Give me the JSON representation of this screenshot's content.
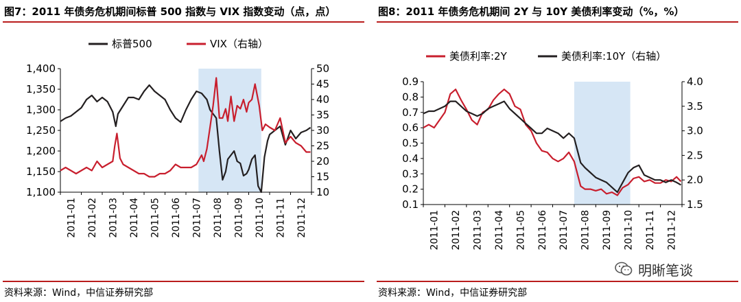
{
  "figures": [
    {
      "title": "图7：2011 年债务危机期间标普 500 指数与 VIX 指数变动（点，点）",
      "source": "资料来源：Wind，中信证券研究部"
    },
    {
      "title": "图8：2011 年债务危机期间 2Y 与 10Y 美债利率变动（%，%）",
      "source": "资料来源：Wind，中信证券研究部"
    }
  ],
  "watermark": {
    "text": "明晰笔谈"
  },
  "chart_data": [
    {
      "type": "line",
      "x_labels": [
        "2011-01",
        "2011-02",
        "2011-03",
        "2011-04",
        "2011-05",
        "2011-06",
        "2011-07",
        "2011-08",
        "2011-09",
        "2011-10",
        "2011-11",
        "2011-12"
      ],
      "x_range": [
        0,
        12
      ],
      "shaded_region": [
        6.6,
        9.6
      ],
      "legend_position": "top",
      "y_left": {
        "min": 1100,
        "max": 1400,
        "ticks": [
          "1,100",
          "1,150",
          "1,200",
          "1,250",
          "1,300",
          "1,350",
          "1,400"
        ]
      },
      "y_right": {
        "min": 10,
        "max": 50,
        "ticks": [
          "10",
          "15",
          "20",
          "25",
          "30",
          "35",
          "40",
          "45",
          "50"
        ]
      },
      "series": [
        {
          "name": "标普500",
          "axis": "left",
          "color": "#231f20",
          "x": [
            0,
            0.25,
            0.5,
            0.75,
            1,
            1.25,
            1.5,
            1.75,
            2,
            2.25,
            2.5,
            2.65,
            2.75,
            3,
            3.25,
            3.5,
            3.75,
            4,
            4.25,
            4.5,
            4.75,
            5,
            5.25,
            5.5,
            5.75,
            6,
            6.25,
            6.5,
            6.75,
            7,
            7.15,
            7.3,
            7.45,
            7.6,
            7.75,
            7.9,
            8,
            8.15,
            8.3,
            8.45,
            8.6,
            8.75,
            8.9,
            9,
            9.15,
            9.3,
            9.45,
            9.6,
            9.75,
            9.9,
            10,
            10.25,
            10.5,
            10.75,
            11,
            11.25,
            11.5,
            11.75,
            11.95
          ],
          "values": [
            1272,
            1280,
            1285,
            1295,
            1305,
            1325,
            1335,
            1320,
            1330,
            1320,
            1295,
            1260,
            1290,
            1310,
            1330,
            1330,
            1325,
            1345,
            1360,
            1345,
            1335,
            1325,
            1300,
            1280,
            1270,
            1300,
            1325,
            1345,
            1340,
            1325,
            1300,
            1290,
            1280,
            1200,
            1130,
            1150,
            1180,
            1190,
            1200,
            1175,
            1170,
            1140,
            1145,
            1155,
            1180,
            1190,
            1115,
            1100,
            1185,
            1225,
            1240,
            1250,
            1260,
            1215,
            1250,
            1230,
            1245,
            1250,
            1257
          ]
        },
        {
          "name": "VIX（右轴）",
          "axis": "right",
          "color": "#c81e2d",
          "x": [
            0,
            0.25,
            0.5,
            0.75,
            1,
            1.25,
            1.5,
            1.75,
            2,
            2.25,
            2.5,
            2.6,
            2.7,
            2.85,
            3,
            3.25,
            3.5,
            3.75,
            4,
            4.25,
            4.5,
            4.75,
            5,
            5.25,
            5.5,
            5.75,
            6,
            6.25,
            6.5,
            6.75,
            6.85,
            7,
            7.15,
            7.3,
            7.45,
            7.6,
            7.75,
            7.9,
            8,
            8.15,
            8.3,
            8.45,
            8.6,
            8.75,
            8.9,
            9,
            9.15,
            9.3,
            9.5,
            9.65,
            9.8,
            10,
            10.25,
            10.5,
            10.75,
            11,
            11.25,
            11.5,
            11.75,
            11.95
          ],
          "values": [
            17,
            18,
            17,
            16,
            17,
            18,
            17,
            20,
            18,
            19,
            20,
            25,
            29,
            21,
            19,
            18,
            17,
            16,
            16,
            15,
            15,
            16,
            16,
            17,
            19,
            18,
            18,
            18,
            19,
            22,
            20,
            24,
            31,
            38,
            47,
            34,
            34,
            37,
            33,
            41,
            33,
            38,
            37,
            40,
            36,
            39,
            40,
            45,
            38,
            30,
            32,
            31,
            30,
            34,
            26,
            28,
            26,
            25,
            23,
            23
          ]
        }
      ]
    },
    {
      "type": "line",
      "x_labels": [
        "2011-01",
        "2011-02",
        "2011-03",
        "2011-04",
        "2011-05",
        "2011-06",
        "2011-07",
        "2011-08",
        "2011-09",
        "2011-10",
        "2011-11",
        "2011-12"
      ],
      "x_range": [
        0,
        12
      ],
      "shaded_region": [
        7.0,
        9.6
      ],
      "legend_position": "top",
      "y_left": {
        "min": 0.1,
        "max": 0.9,
        "ticks": [
          "0.1",
          "0.2",
          "0.3",
          "0.4",
          "0.5",
          "0.6",
          "0.7",
          "0.8",
          "0.9"
        ]
      },
      "y_right": {
        "min": 1.5,
        "max": 4.0,
        "ticks": [
          "1.5",
          "2.0",
          "2.5",
          "3.0",
          "3.5",
          "4.0"
        ]
      },
      "series": [
        {
          "name": "美债利率:2Y",
          "axis": "left",
          "color": "#c81e2d",
          "x": [
            0,
            0.25,
            0.5,
            0.75,
            1,
            1.25,
            1.5,
            1.75,
            2,
            2.25,
            2.5,
            2.75,
            3,
            3.25,
            3.5,
            3.75,
            4,
            4.25,
            4.5,
            4.75,
            5,
            5.25,
            5.5,
            5.75,
            6,
            6.25,
            6.5,
            6.75,
            7,
            7.15,
            7.3,
            7.5,
            7.75,
            8,
            8.25,
            8.5,
            8.75,
            9,
            9.25,
            9.5,
            9.75,
            10,
            10.25,
            10.5,
            10.75,
            11,
            11.25,
            11.5,
            11.75,
            11.95
          ],
          "values": [
            0.6,
            0.62,
            0.6,
            0.65,
            0.7,
            0.82,
            0.85,
            0.78,
            0.72,
            0.65,
            0.62,
            0.7,
            0.72,
            0.78,
            0.82,
            0.85,
            0.82,
            0.74,
            0.72,
            0.62,
            0.58,
            0.5,
            0.45,
            0.44,
            0.4,
            0.38,
            0.4,
            0.44,
            0.38,
            0.3,
            0.22,
            0.2,
            0.2,
            0.19,
            0.2,
            0.17,
            0.18,
            0.16,
            0.21,
            0.23,
            0.27,
            0.28,
            0.25,
            0.26,
            0.24,
            0.24,
            0.26,
            0.25,
            0.28,
            0.25
          ]
        },
        {
          "name": "美债利率:10Y（右轴）",
          "axis": "right",
          "color": "#231f20",
          "x": [
            0,
            0.25,
            0.5,
            0.75,
            1,
            1.25,
            1.5,
            1.75,
            2,
            2.25,
            2.5,
            2.75,
            3,
            3.25,
            3.5,
            3.75,
            4,
            4.25,
            4.5,
            4.75,
            5,
            5.25,
            5.5,
            5.75,
            6,
            6.25,
            6.5,
            6.75,
            7,
            7.15,
            7.3,
            7.5,
            7.75,
            8,
            8.25,
            8.5,
            8.75,
            9,
            9.25,
            9.5,
            9.75,
            10,
            10.25,
            10.5,
            10.75,
            11,
            11.25,
            11.5,
            11.75,
            11.95
          ],
          "values": [
            3.35,
            3.4,
            3.4,
            3.45,
            3.5,
            3.6,
            3.6,
            3.5,
            3.4,
            3.35,
            3.3,
            3.35,
            3.45,
            3.5,
            3.55,
            3.6,
            3.45,
            3.35,
            3.25,
            3.15,
            3.05,
            2.95,
            2.95,
            3.05,
            3.0,
            2.95,
            2.85,
            2.95,
            2.85,
            2.6,
            2.35,
            2.25,
            2.15,
            2.05,
            2.0,
            1.95,
            1.85,
            1.75,
            1.95,
            2.15,
            2.25,
            2.3,
            2.1,
            2.05,
            2.0,
            2.0,
            1.95,
            2.0,
            1.95,
            1.9
          ]
        }
      ]
    }
  ]
}
